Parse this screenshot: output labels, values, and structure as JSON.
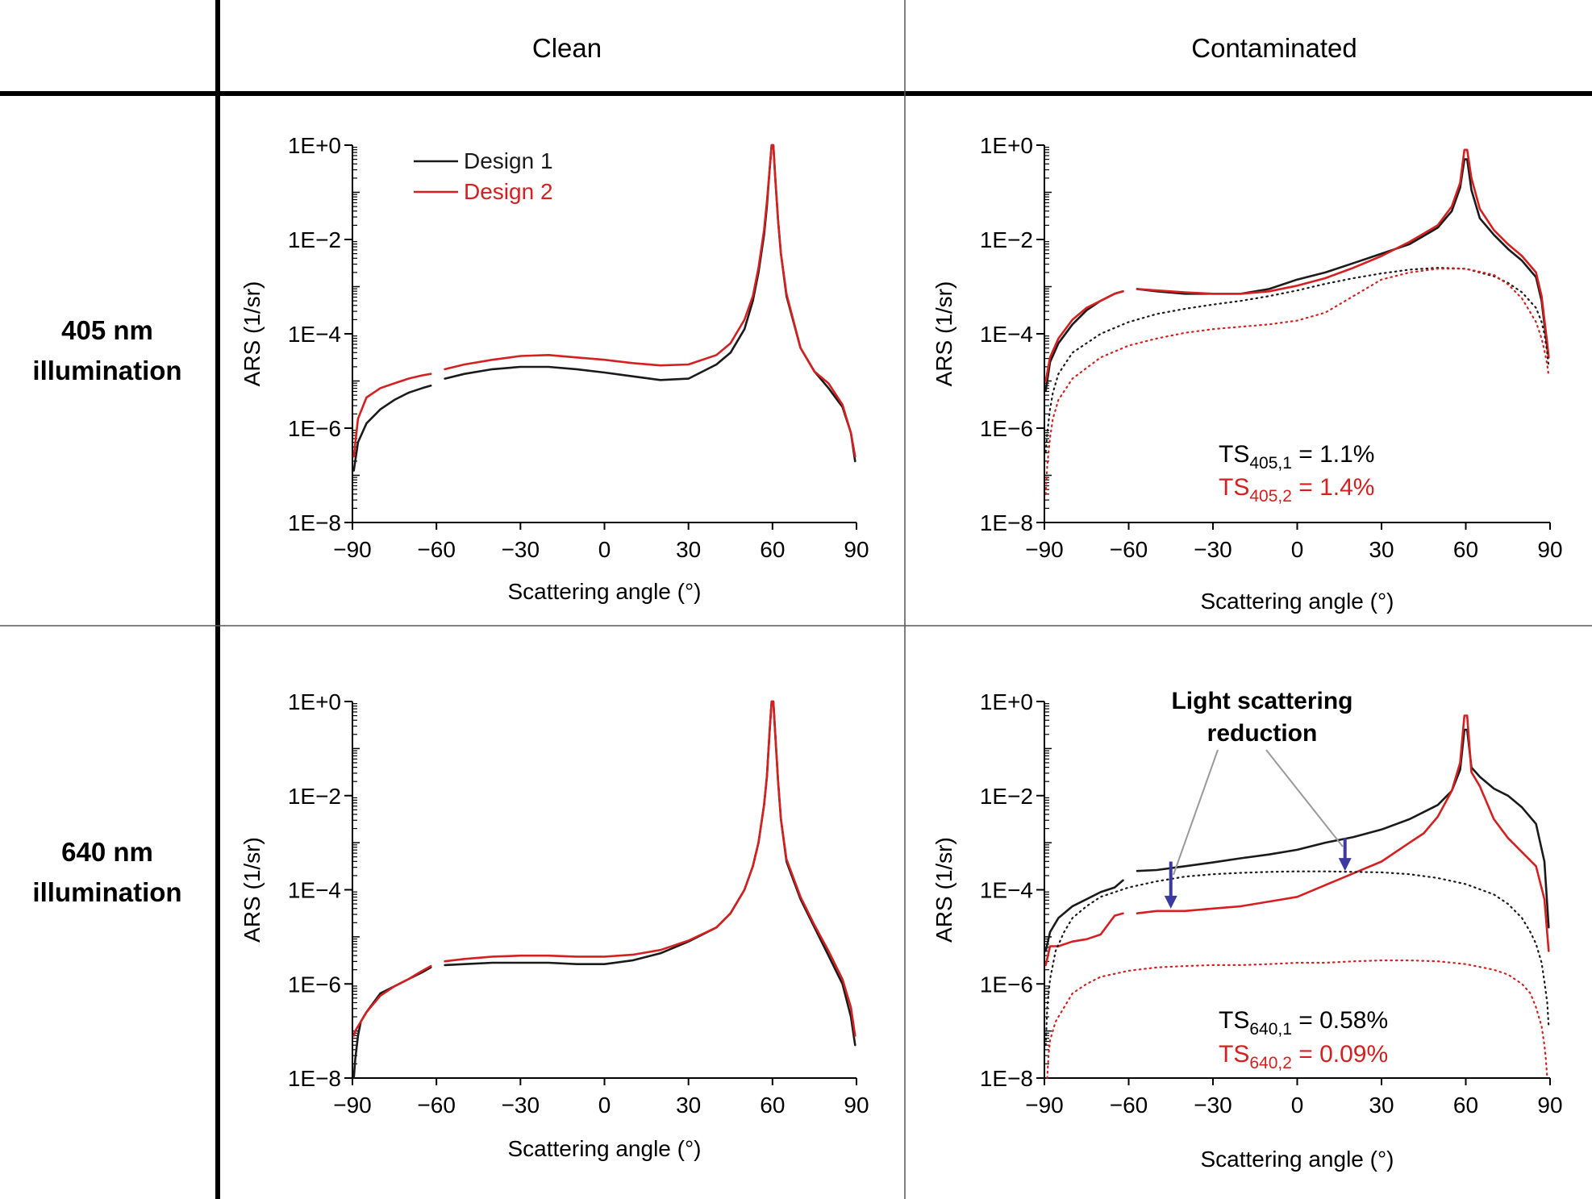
{
  "columns": {
    "clean": "Clean",
    "contaminated": "Contaminated"
  },
  "rows": {
    "r405": {
      "line1": "405 nm",
      "line2": "illumination"
    },
    "r640": {
      "line1": "640 nm",
      "line2": "illumination"
    }
  },
  "common": {
    "xlabel": "Scattering angle (°)",
    "ylabel": "ARS (1/sr)",
    "xticks": [
      "−90",
      "−60",
      "−30",
      "0",
      "30",
      "60",
      "90"
    ],
    "yticks": [
      "1E+0",
      "1E−2",
      "1E−4",
      "1E−6",
      "1E−8"
    ]
  },
  "legend": {
    "design1": "Design 1",
    "design2": "Design 2"
  },
  "colors": {
    "design1": "#1a1a1a",
    "design2": "#d42020",
    "arrow": "#3a3aa0",
    "callout": "#999999",
    "text2": "#d42020"
  },
  "annotations": {
    "ts405": {
      "d1_base": "TS",
      "d1_sub": "405,1",
      "d1_val": " = 1.1%",
      "d2_base": "TS",
      "d2_sub": "405,2",
      "d2_val": " = 1.4%"
    },
    "ts640": {
      "d1_base": "TS",
      "d1_sub": "640,1",
      "d1_val": " = 0.58%",
      "d2_base": "TS",
      "d2_sub": "640,2",
      "d2_val": " = 0.09%"
    },
    "callout_line1": "Light scattering",
    "callout_line2": "reduction"
  },
  "chart_data": [
    {
      "id": "clean405",
      "type": "line",
      "title": "Clean – 405 nm illumination",
      "xlabel": "Scattering angle (°)",
      "ylabel": "ARS (1/sr)",
      "yscale": "log",
      "xlim": [
        -90,
        90
      ],
      "ylim_exp": [
        -8,
        0
      ],
      "gap": [
        -62,
        -57
      ],
      "series": [
        {
          "name": "Design 1",
          "style": "solid",
          "x": [
            -89.5,
            -88,
            -85,
            -80,
            -75,
            -70,
            -65,
            -62,
            -57,
            -50,
            -40,
            -30,
            -20,
            -10,
            0,
            10,
            20,
            30,
            40,
            45,
            50,
            53,
            55,
            57,
            58,
            59,
            59.7,
            60.3,
            61,
            62,
            63,
            65,
            70,
            75,
            80,
            85,
            88,
            89.5
          ],
          "y": [
            -6.9,
            -6.3,
            -5.9,
            -5.6,
            -5.4,
            -5.25,
            -5.15,
            -5.1,
            -4.95,
            -4.85,
            -4.75,
            -4.7,
            -4.7,
            -4.75,
            -4.82,
            -4.9,
            -4.98,
            -4.95,
            -4.65,
            -4.4,
            -3.9,
            -3.3,
            -2.7,
            -1.9,
            -1.3,
            -0.5,
            0,
            0,
            -0.7,
            -1.6,
            -2.3,
            -3.2,
            -4.3,
            -4.8,
            -5.15,
            -5.55,
            -6.1,
            -6.7
          ]
        },
        {
          "name": "Design 2",
          "style": "solid",
          "x": [
            -89.5,
            -88,
            -85,
            -80,
            -75,
            -70,
            -65,
            -62,
            -57,
            -50,
            -40,
            -30,
            -20,
            -10,
            0,
            10,
            20,
            30,
            40,
            45,
            50,
            53,
            55,
            57,
            58,
            59,
            59.7,
            60.3,
            61,
            62,
            63,
            65,
            70,
            75,
            80,
            85,
            88,
            89.5
          ],
          "y": [
            -6.6,
            -5.8,
            -5.35,
            -5.15,
            -5.05,
            -4.95,
            -4.88,
            -4.85,
            -4.75,
            -4.65,
            -4.55,
            -4.47,
            -4.45,
            -4.5,
            -4.55,
            -4.62,
            -4.67,
            -4.65,
            -4.45,
            -4.2,
            -3.7,
            -3.2,
            -2.6,
            -1.8,
            -1.2,
            -0.5,
            0,
            0,
            -0.7,
            -1.6,
            -2.3,
            -3.15,
            -4.3,
            -4.8,
            -5.05,
            -5.5,
            -6.1,
            -6.6
          ]
        }
      ]
    },
    {
      "id": "cont405",
      "type": "line",
      "title": "Contaminated – 405 nm illumination",
      "xlabel": "Scattering angle (°)",
      "ylabel": "ARS (1/sr)",
      "yscale": "log",
      "xlim": [
        -90,
        90
      ],
      "ylim_exp": [
        -8,
        0
      ],
      "gap": [
        -62,
        -57
      ],
      "series": [
        {
          "name": "Design 1",
          "style": "solid",
          "x": [
            -89.5,
            -88,
            -85,
            -80,
            -75,
            -70,
            -65,
            -62,
            -57,
            -50,
            -40,
            -30,
            -20,
            -10,
            0,
            10,
            20,
            30,
            40,
            50,
            55,
            58,
            59.5,
            60.5,
            62,
            65,
            70,
            75,
            80,
            85,
            87,
            88,
            89,
            89.5
          ],
          "y": [
            -5.2,
            -4.6,
            -4.2,
            -3.8,
            -3.5,
            -3.3,
            -3.15,
            -3.1,
            -3.05,
            -3.1,
            -3.15,
            -3.15,
            -3.15,
            -3.05,
            -2.85,
            -2.7,
            -2.5,
            -2.3,
            -2.1,
            -1.75,
            -1.4,
            -0.9,
            -0.3,
            -0.3,
            -0.95,
            -1.55,
            -1.9,
            -2.2,
            -2.45,
            -2.8,
            -3.3,
            -3.8,
            -4.3,
            -4.5
          ]
        },
        {
          "name": "Design 2",
          "style": "solid",
          "x": [
            -89.5,
            -88,
            -85,
            -80,
            -75,
            -70,
            -65,
            -62,
            -57,
            -50,
            -40,
            -30,
            -20,
            -10,
            0,
            10,
            20,
            30,
            40,
            50,
            55,
            58,
            59.5,
            60.5,
            62,
            65,
            70,
            75,
            80,
            85,
            87,
            88,
            89,
            89.5
          ],
          "y": [
            -5.0,
            -4.5,
            -4.1,
            -3.7,
            -3.45,
            -3.3,
            -3.15,
            -3.1,
            -3.05,
            -3.08,
            -3.12,
            -3.15,
            -3.15,
            -3.1,
            -2.98,
            -2.82,
            -2.6,
            -2.35,
            -2.05,
            -1.7,
            -1.3,
            -0.8,
            -0.1,
            -0.1,
            -0.7,
            -1.35,
            -1.8,
            -2.1,
            -2.35,
            -2.7,
            -3.2,
            -3.7,
            -4.2,
            -4.5
          ]
        },
        {
          "name": "Design 1 (contamination only)",
          "style": "dotted",
          "x": [
            -89.5,
            -89,
            -88,
            -87,
            -85,
            -80,
            -70,
            -60,
            -50,
            -40,
            -30,
            -20,
            -10,
            0,
            10,
            20,
            30,
            40,
            50,
            60,
            70,
            75,
            80,
            85,
            87,
            88,
            89,
            89.5
          ],
          "y": [
            -6.5,
            -6.1,
            -5.6,
            -5.25,
            -4.85,
            -4.4,
            -4.0,
            -3.75,
            -3.58,
            -3.47,
            -3.38,
            -3.3,
            -3.2,
            -3.08,
            -2.94,
            -2.82,
            -2.72,
            -2.64,
            -2.6,
            -2.62,
            -2.78,
            -2.92,
            -3.12,
            -3.45,
            -3.75,
            -4.0,
            -4.4,
            -4.7
          ]
        },
        {
          "name": "Design 2 (contamination only)",
          "style": "dotted",
          "x": [
            -89.5,
            -89,
            -88,
            -87,
            -85,
            -80,
            -70,
            -60,
            -50,
            -40,
            -30,
            -20,
            -10,
            0,
            10,
            20,
            30,
            40,
            50,
            60,
            70,
            75,
            80,
            85,
            87,
            88,
            89,
            89.5
          ],
          "y": [
            -7.4,
            -6.8,
            -6.2,
            -5.8,
            -5.4,
            -4.95,
            -4.5,
            -4.25,
            -4.1,
            -3.98,
            -3.9,
            -3.85,
            -3.8,
            -3.72,
            -3.55,
            -3.2,
            -2.85,
            -2.7,
            -2.62,
            -2.62,
            -2.75,
            -2.95,
            -3.25,
            -3.75,
            -4.1,
            -4.35,
            -4.65,
            -4.9
          ]
        }
      ]
    },
    {
      "id": "clean640",
      "type": "line",
      "title": "Clean – 640 nm illumination",
      "xlabel": "Scattering angle (°)",
      "ylabel": "ARS (1/sr)",
      "yscale": "log",
      "xlim": [
        -90,
        90
      ],
      "ylim_exp": [
        -8,
        0
      ],
      "gap": [
        -62,
        -57
      ],
      "series": [
        {
          "name": "Design 1",
          "style": "solid",
          "x": [
            -89.5,
            -89,
            -88,
            -87,
            -85,
            -80,
            -75,
            -70,
            -65,
            -62,
            -57,
            -50,
            -40,
            -30,
            -20,
            -10,
            0,
            10,
            20,
            30,
            40,
            45,
            50,
            53,
            55,
            57,
            58,
            59,
            59.7,
            60.3,
            61,
            62,
            63,
            65,
            70,
            75,
            80,
            85,
            88,
            89.5
          ],
          "y": [
            -8.0,
            -7.6,
            -7.1,
            -6.8,
            -6.6,
            -6.2,
            -6.05,
            -5.9,
            -5.75,
            -5.65,
            -5.6,
            -5.58,
            -5.55,
            -5.55,
            -5.55,
            -5.58,
            -5.58,
            -5.5,
            -5.35,
            -5.1,
            -4.8,
            -4.5,
            -4.0,
            -3.5,
            -3.0,
            -2.2,
            -1.6,
            -0.6,
            0,
            0,
            -0.7,
            -1.7,
            -2.5,
            -3.4,
            -4.2,
            -4.8,
            -5.4,
            -6.0,
            -6.7,
            -7.3
          ]
        },
        {
          "name": "Design 2",
          "style": "solid",
          "x": [
            -89.5,
            -89,
            -88,
            -87,
            -85,
            -80,
            -75,
            -70,
            -65,
            -62,
            -57,
            -50,
            -40,
            -30,
            -20,
            -10,
            0,
            10,
            20,
            30,
            40,
            45,
            50,
            53,
            55,
            57,
            58,
            59,
            59.7,
            60.3,
            61,
            62,
            63,
            65,
            70,
            75,
            80,
            85,
            88,
            89.5
          ],
          "y": [
            -7.1,
            -7.0,
            -6.9,
            -6.8,
            -6.6,
            -6.25,
            -6.05,
            -5.9,
            -5.72,
            -5.62,
            -5.52,
            -5.47,
            -5.42,
            -5.4,
            -5.4,
            -5.42,
            -5.42,
            -5.38,
            -5.28,
            -5.08,
            -4.8,
            -4.5,
            -4.0,
            -3.5,
            -3.0,
            -2.2,
            -1.6,
            -0.6,
            0,
            0,
            -0.7,
            -1.7,
            -2.5,
            -3.35,
            -4.15,
            -4.75,
            -5.3,
            -5.9,
            -6.5,
            -7.1
          ]
        }
      ]
    },
    {
      "id": "cont640",
      "type": "line",
      "title": "Contaminated – 640 nm illumination",
      "xlabel": "Scattering angle (°)",
      "ylabel": "ARS (1/sr)",
      "yscale": "log",
      "xlim": [
        -90,
        90
      ],
      "ylim_exp": [
        -8,
        0
      ],
      "gap": [
        -62,
        -57
      ],
      "series": [
        {
          "name": "Design 1",
          "style": "solid",
          "x": [
            -89.5,
            -88,
            -85,
            -80,
            -75,
            -70,
            -65,
            -62,
            -57,
            -50,
            -40,
            -30,
            -20,
            -10,
            0,
            10,
            20,
            30,
            40,
            50,
            55,
            58,
            59.5,
            60.5,
            62,
            65,
            70,
            75,
            80,
            85,
            88,
            89.5
          ],
          "y": [
            -5.3,
            -4.9,
            -4.6,
            -4.35,
            -4.2,
            -4.05,
            -3.95,
            -3.8,
            -3.6,
            -3.58,
            -3.5,
            -3.42,
            -3.33,
            -3.25,
            -3.15,
            -3.0,
            -2.88,
            -2.72,
            -2.5,
            -2.2,
            -1.9,
            -1.45,
            -0.6,
            -0.6,
            -1.4,
            -1.6,
            -1.85,
            -2.0,
            -2.25,
            -2.6,
            -3.4,
            -4.8
          ]
        },
        {
          "name": "Design 2",
          "style": "solid",
          "x": [
            -89.5,
            -88,
            -85,
            -80,
            -75,
            -70,
            -65,
            -62,
            -57,
            -50,
            -45,
            -40,
            -30,
            -20,
            -10,
            0,
            10,
            20,
            30,
            40,
            45,
            50,
            55,
            58,
            59.5,
            60.5,
            62,
            65,
            70,
            75,
            80,
            85,
            88,
            89.5
          ],
          "y": [
            -5.6,
            -5.2,
            -5.2,
            -5.1,
            -5.05,
            -4.95,
            -4.55,
            -4.5,
            -4.5,
            -4.45,
            -4.45,
            -4.45,
            -4.4,
            -4.35,
            -4.25,
            -4.15,
            -3.9,
            -3.65,
            -3.4,
            -3.0,
            -2.8,
            -2.45,
            -1.9,
            -1.3,
            -0.3,
            -0.3,
            -1.5,
            -1.8,
            -2.5,
            -2.9,
            -3.2,
            -3.5,
            -4.2,
            -5.3
          ]
        },
        {
          "name": "Design 1 (contamination only)",
          "style": "dotted",
          "x": [
            -89.5,
            -89,
            -88,
            -86,
            -83,
            -80,
            -75,
            -70,
            -60,
            -50,
            -40,
            -30,
            -20,
            -10,
            0,
            10,
            20,
            30,
            40,
            50,
            60,
            70,
            75,
            80,
            83,
            85,
            87,
            88,
            89,
            89.5
          ],
          "y": [
            -7.3,
            -6.5,
            -5.9,
            -5.3,
            -4.9,
            -4.6,
            -4.35,
            -4.15,
            -3.95,
            -3.82,
            -3.72,
            -3.67,
            -3.64,
            -3.62,
            -3.61,
            -3.61,
            -3.62,
            -3.63,
            -3.67,
            -3.75,
            -3.88,
            -4.1,
            -4.3,
            -4.6,
            -4.9,
            -5.15,
            -5.55,
            -5.95,
            -6.4,
            -6.9
          ]
        },
        {
          "name": "Design 2 (contamination only)",
          "style": "dotted",
          "x": [
            -89,
            -88.5,
            -88,
            -86,
            -83,
            -80,
            -75,
            -70,
            -60,
            -50,
            -40,
            -30,
            -20,
            -10,
            0,
            10,
            20,
            30,
            40,
            50,
            60,
            70,
            75,
            80,
            83,
            85,
            87,
            88,
            88.5,
            89
          ],
          "y": [
            -8.0,
            -7.5,
            -7.2,
            -6.8,
            -6.5,
            -6.2,
            -6.0,
            -5.85,
            -5.72,
            -5.65,
            -5.62,
            -5.6,
            -5.6,
            -5.58,
            -5.55,
            -5.55,
            -5.52,
            -5.5,
            -5.5,
            -5.52,
            -5.58,
            -5.7,
            -5.8,
            -6.0,
            -6.2,
            -6.5,
            -6.9,
            -7.3,
            -7.6,
            -8.0
          ]
        }
      ]
    }
  ]
}
